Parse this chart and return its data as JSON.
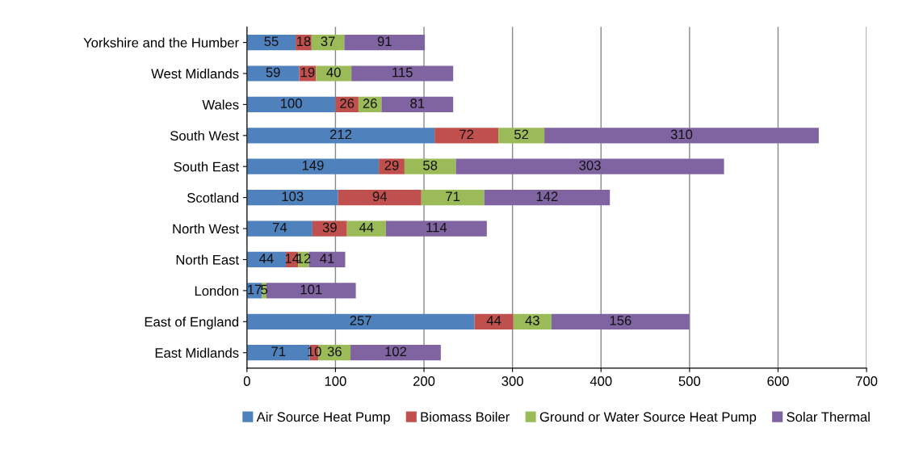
{
  "chart_data": {
    "type": "bar",
    "orientation": "horizontal",
    "stacked": true,
    "categories": [
      "Yorkshire and the Humber",
      "West Midlands",
      "Wales",
      "South West",
      "South East",
      "Scotland",
      "North West",
      "North East",
      "London",
      "East of England",
      "East Midlands"
    ],
    "series": [
      {
        "name": "Air Source Heat Pump",
        "color": "#4f81bd",
        "values": [
          55,
          59,
          100,
          212,
          149,
          103,
          74,
          44,
          17,
          257,
          71
        ]
      },
      {
        "name": "Biomass Boiler",
        "color": "#c0504d",
        "values": [
          18,
          19,
          26,
          72,
          29,
          94,
          39,
          14,
          null,
          44,
          10
        ]
      },
      {
        "name": "Ground or Water Source Heat Pump",
        "color": "#9bbb59",
        "values": [
          37,
          40,
          26,
          52,
          58,
          71,
          44,
          12,
          5,
          43,
          36
        ]
      },
      {
        "name": "Solar Thermal",
        "color": "#8064a2",
        "values": [
          91,
          115,
          81,
          310,
          303,
          142,
          114,
          41,
          101,
          156,
          102
        ]
      }
    ],
    "xlim": [
      0,
      700
    ],
    "xticks": [
      0,
      100,
      200,
      300,
      400,
      500,
      600,
      700
    ],
    "grid": "x",
    "legend": "bottom",
    "data_labels": true
  }
}
